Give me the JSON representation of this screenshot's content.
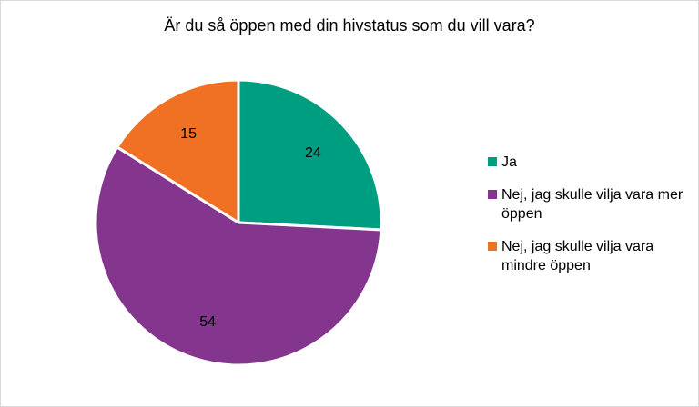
{
  "chart_data": {
    "type": "pie",
    "title": "Är du så öppen med din hivstatus som du vill vara?",
    "labels": [
      "Ja",
      "Nej, jag skulle vilja vara mer öppen",
      "Nej, jag skulle vilja vara mindre öppen"
    ],
    "values": [
      24,
      54,
      15
    ],
    "colors": [
      "#009E80",
      "#84358E",
      "#F07024"
    ],
    "legend_position": "right",
    "data_labels": [
      "24",
      "54",
      "15"
    ]
  }
}
